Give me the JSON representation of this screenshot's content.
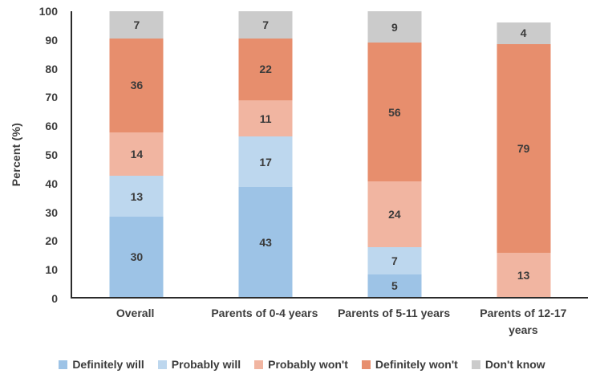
{
  "chart_data": {
    "type": "bar",
    "stacked": true,
    "title": "",
    "xlabel": "",
    "ylabel": "Percent (%)",
    "ylim": [
      0,
      100
    ],
    "yticks": [
      0,
      10,
      20,
      30,
      40,
      50,
      60,
      70,
      80,
      90,
      100
    ],
    "grid": false,
    "legend_position": "bottom",
    "background_color": "#ffffff",
    "axis_line_color": "#2b2b2b",
    "text_color": "#3d3d3d",
    "categories": [
      "Overall",
      "Parents of 0-4 years",
      "Parents of 5-11 years",
      "Parents of 12-17 years"
    ],
    "series": [
      {
        "name": "Definitely will",
        "color": "#9DC3E6",
        "values": [
          30,
          43,
          5,
          0
        ]
      },
      {
        "name": "Probably will",
        "color": "#BDD7EE",
        "values": [
          13,
          17,
          7,
          0
        ]
      },
      {
        "name": "Probably won't",
        "color": "#F1B5A1",
        "values": [
          14,
          11,
          24,
          13
        ]
      },
      {
        "name": "Definitely won't",
        "color": "#E78E6D",
        "values": [
          36,
          22,
          56,
          79
        ]
      },
      {
        "name": "Don't know",
        "color": "#CBCBCB",
        "values": [
          7,
          7,
          9,
          4
        ]
      }
    ]
  }
}
